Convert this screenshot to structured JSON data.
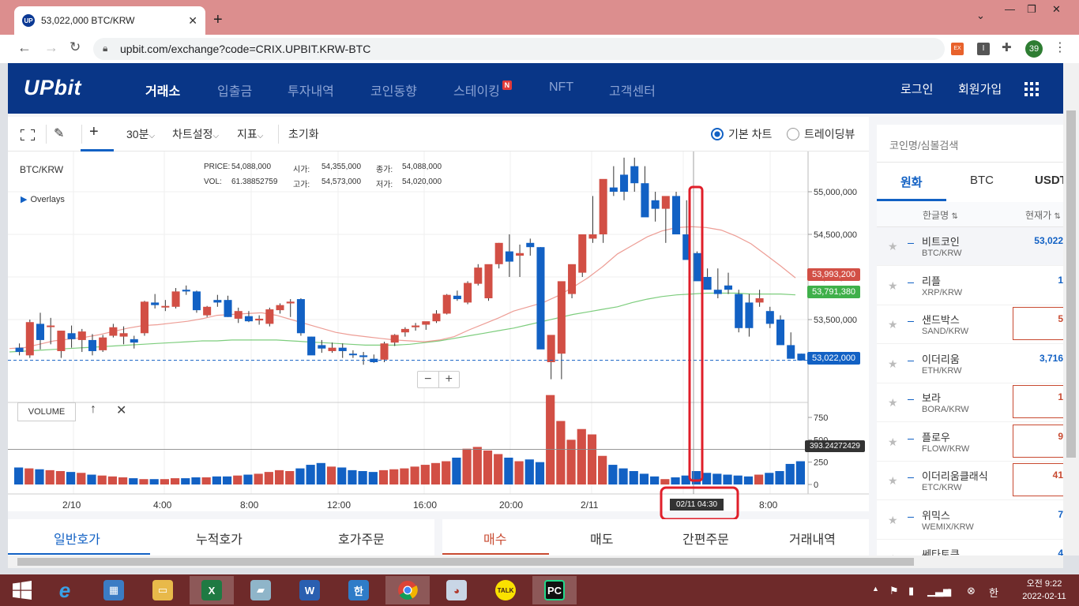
{
  "browser": {
    "tab_title": "53,022,000 BTC/KRW",
    "favicon_text": "UP",
    "url": "upbit.com/exchange?code=CRIX.UPBIT.KRW-BTC",
    "profile_badge": "39"
  },
  "header": {
    "logo": "UPbit",
    "nav": [
      "거래소",
      "입출금",
      "투자내역",
      "코인동향",
      "스테이킹",
      "NFT",
      "고객센터"
    ],
    "nav_badge": "N",
    "login": "로그인",
    "signup": "회원가입"
  },
  "chart_toolbar": {
    "interval": "30분",
    "settings": "차트설정",
    "indicators": "지표",
    "reset": "초기화",
    "basic_chart": "기본 차트",
    "trading_view": "트레이딩뷰"
  },
  "chart_info": {
    "pair": "BTC/KRW",
    "price_label": "PRICE:",
    "price": "54,088,000",
    "vol_label": "VOL:",
    "vol": "61.38852759",
    "open_label": "시가:",
    "open": "54,355,000",
    "high_label": "고가:",
    "high": "54,573,000",
    "close_label": "종가:",
    "close": "54,088,000",
    "low_label": "저가:",
    "low": "54,020,000",
    "overlays": "Overlays",
    "volume_label": "VOLUME",
    "label_red": "53,993,200",
    "label_green": "53,791,380",
    "label_current": "53,022,000",
    "label_volume": "393.24272429",
    "crosshair_time": "02/11 04:30"
  },
  "chart_data": {
    "type": "candlestick",
    "y_ticks": [
      "55,000,000",
      "54,500,000",
      "54,000,000",
      "53,500,000"
    ],
    "y_tick_values": [
      55000000,
      54500000,
      54000000,
      53500000
    ],
    "vol_ticks": [
      "750",
      "500",
      "250",
      "0"
    ],
    "vol_tick_values": [
      750,
      500,
      250,
      0
    ],
    "x_ticks": [
      "2/10",
      "4:00",
      "8:00",
      "12:00",
      "16:00",
      "20:00",
      "2/11",
      "4:00",
      "8:00"
    ],
    "candles_ohlc": [
      [
        53170,
        53220,
        53080,
        53120
      ],
      [
        53080,
        53500,
        53050,
        53470
      ],
      [
        53450,
        53580,
        53150,
        53260
      ],
      [
        53420,
        53520,
        53210,
        53430
      ],
      [
        53130,
        53370,
        53050,
        53370
      ],
      [
        53340,
        53430,
        53170,
        53270
      ],
      [
        53260,
        53390,
        53120,
        53360
      ],
      [
        53260,
        53330,
        53080,
        53130
      ],
      [
        53140,
        53320,
        53120,
        53290
      ],
      [
        53310,
        53450,
        53290,
        53410
      ],
      [
        53300,
        53420,
        53210,
        53340
      ],
      [
        53270,
        53310,
        53160,
        53230
      ],
      [
        53340,
        53720,
        53310,
        53710
      ],
      [
        53700,
        53800,
        53630,
        53670
      ],
      [
        53660,
        53730,
        53600,
        53660
      ],
      [
        53650,
        53870,
        53630,
        53830
      ],
      [
        53850,
        53900,
        53790,
        53830
      ],
      [
        53830,
        53840,
        53580,
        53610
      ],
      [
        53550,
        53660,
        53530,
        53650
      ],
      [
        53730,
        53790,
        53650,
        53700
      ],
      [
        53730,
        53780,
        53530,
        53530
      ],
      [
        53510,
        53640,
        53460,
        53600
      ],
      [
        53540,
        53600,
        53470,
        53480
      ],
      [
        53490,
        53550,
        53440,
        53510
      ],
      [
        53450,
        53640,
        53420,
        53620
      ],
      [
        53610,
        53690,
        53570,
        53670
      ],
      [
        53690,
        53740,
        53530,
        53710
      ],
      [
        53740,
        53750,
        53310,
        53340
      ],
      [
        53300,
        53300,
        53100,
        53080
      ],
      [
        53200,
        53260,
        53110,
        53160
      ],
      [
        53130,
        53230,
        53110,
        53170
      ],
      [
        53170,
        53220,
        53050,
        53130
      ],
      [
        53100,
        53140,
        53050,
        53090
      ],
      [
        53080,
        53120,
        52970,
        53060
      ],
      [
        53040,
        53090,
        52990,
        53000
      ],
      [
        53030,
        53240,
        53000,
        53220
      ],
      [
        53230,
        53330,
        53190,
        53320
      ],
      [
        53350,
        53410,
        53300,
        53390
      ],
      [
        53410,
        53460,
        53370,
        53430
      ],
      [
        53440,
        53470,
        53380,
        53480
      ],
      [
        53480,
        53610,
        53460,
        53570
      ],
      [
        53570,
        53800,
        53560,
        53790
      ],
      [
        53780,
        53840,
        53720,
        53740
      ],
      [
        53700,
        53950,
        53680,
        53930
      ],
      [
        53920,
        54150,
        53900,
        54110
      ],
      [
        53750,
        54100,
        53720,
        54150
      ],
      [
        54150,
        54400,
        54100,
        54400
      ],
      [
        54300,
        54500,
        54000,
        54180
      ],
      [
        54250,
        54380,
        54000,
        54280
      ],
      [
        54400,
        54450,
        54250,
        54350
      ],
      [
        54350,
        54350,
        53950,
        53150
      ],
      [
        53000,
        53100,
        52800,
        53320
      ],
      [
        53100,
        53800,
        52800,
        53950
      ],
      [
        53800,
        54100,
        53750,
        54150
      ],
      [
        54050,
        54450,
        54000,
        54500
      ],
      [
        54450,
        54950,
        54400,
        54500
      ],
      [
        54500,
        55000,
        54400,
        55150
      ],
      [
        55050,
        55300,
        54950,
        55000
      ],
      [
        55200,
        55400,
        54900,
        55000
      ],
      [
        55300,
        55400,
        55000,
        55100
      ],
      [
        55100,
        55300,
        54750,
        54700
      ],
      [
        54900,
        55000,
        54650,
        54800
      ],
      [
        54800,
        54900,
        54400,
        54950
      ],
      [
        54950,
        55000,
        54550,
        54500
      ],
      [
        54500,
        54900,
        54400,
        54200
      ],
      [
        54280,
        54300,
        54000,
        53950
      ],
      [
        54000,
        54100,
        53950,
        53850
      ],
      [
        53850,
        54100,
        53750,
        53800
      ],
      [
        53900,
        54050,
        53800,
        53850
      ],
      [
        53800,
        53850,
        53350,
        53400
      ],
      [
        53700,
        53800,
        53300,
        53400
      ],
      [
        53700,
        53850,
        53650,
        53750
      ],
      [
        53600,
        53650,
        53400,
        53450
      ],
      [
        53500,
        53550,
        53350,
        53200
      ],
      [
        53200,
        53350,
        53100,
        53040
      ],
      [
        53100,
        53100,
        53030,
        53020
      ]
    ],
    "ma_red": [
      53160,
      53170,
      53210,
      53250,
      53270,
      53290,
      53320,
      53360,
      53400,
      53430,
      53440,
      53460,
      53480,
      53510,
      53550,
      53560,
      53570,
      53580,
      53550,
      53500,
      53450,
      53400,
      53350,
      53320,
      53300,
      53280,
      53260,
      53250,
      53240,
      53260,
      53300,
      53380,
      53450,
      53520,
      53600,
      53650,
      53700,
      53780,
      53880,
      53990,
      54120,
      54270,
      54370,
      54470,
      54540,
      54580,
      54590,
      54580,
      54550,
      54480,
      54390,
      54260,
      54130,
      53990
    ],
    "ma_green": [
      53120,
      53130,
      53140,
      53150,
      53160,
      53170,
      53180,
      53190,
      53200,
      53210,
      53220,
      53230,
      53240,
      53250,
      53250,
      53260,
      53260,
      53260,
      53260,
      53250,
      53240,
      53230,
      53220,
      53210,
      53200,
      53200,
      53200,
      53210,
      53230,
      53250,
      53280,
      53310,
      53340,
      53370,
      53400,
      53440,
      53480,
      53520,
      53560,
      53590,
      53620,
      53650,
      53700,
      53740,
      53770,
      53790,
      53800,
      53810,
      53810,
      53810,
      53800,
      53800,
      53800,
      53790
    ],
    "volume": [
      190,
      180,
      170,
      160,
      150,
      140,
      130,
      110,
      100,
      90,
      80,
      70,
      60,
      60,
      60,
      70,
      70,
      80,
      80,
      90,
      90,
      100,
      110,
      120,
      140,
      160,
      150,
      180,
      220,
      240,
      200,
      190,
      160,
      150,
      140,
      160,
      170,
      180,
      200,
      220,
      240,
      260,
      300,
      400,
      420,
      380,
      340,
      300,
      260,
      280,
      250,
      1000,
      710,
      500,
      620,
      560,
      320,
      220,
      180,
      150,
      120,
      90,
      60,
      80,
      100,
      150,
      130,
      120,
      110,
      100,
      90,
      110,
      130,
      150,
      230,
      260
    ],
    "ylim": [
      52600000,
      55500000
    ]
  },
  "right_panel": {
    "search_placeholder": "코인명/심볼검색",
    "tabs": [
      "원화",
      "BTC",
      "USDT"
    ],
    "col_name": "한글명",
    "col_price": "현재가",
    "rows": [
      {
        "name": "비트코인",
        "symbol": "BTC/KRW",
        "price": "53,022"
      },
      {
        "name": "리플",
        "symbol": "XRP/KRW",
        "price": "1"
      },
      {
        "name": "샌드박스",
        "symbol": "SAND/KRW",
        "price": "5"
      },
      {
        "name": "이더리움",
        "symbol": "ETH/KRW",
        "price": "3,716"
      },
      {
        "name": "보라",
        "symbol": "BORA/KRW",
        "price": "1"
      },
      {
        "name": "플로우",
        "symbol": "FLOW/KRW",
        "price": "9"
      },
      {
        "name": "이더리움클래식",
        "symbol": "ETC/KRW",
        "price": "41"
      },
      {
        "name": "위믹스",
        "symbol": "WEMIX/KRW",
        "price": "7"
      },
      {
        "name": "쎄타토큰",
        "symbol": "",
        "price": "4"
      }
    ]
  },
  "bottom_tabs": {
    "left": [
      "일반호가",
      "누적호가",
      "호가주문"
    ],
    "right": [
      "매수",
      "매도",
      "간편주문",
      "거래내역"
    ]
  },
  "taskbar": {
    "time": "오전 9:22",
    "date": "2022-02-11",
    "ime": "한"
  },
  "colors": {
    "up": "#d24f45",
    "down": "#1261c4",
    "brand": "#093687",
    "annotation": "#e01f2a"
  }
}
